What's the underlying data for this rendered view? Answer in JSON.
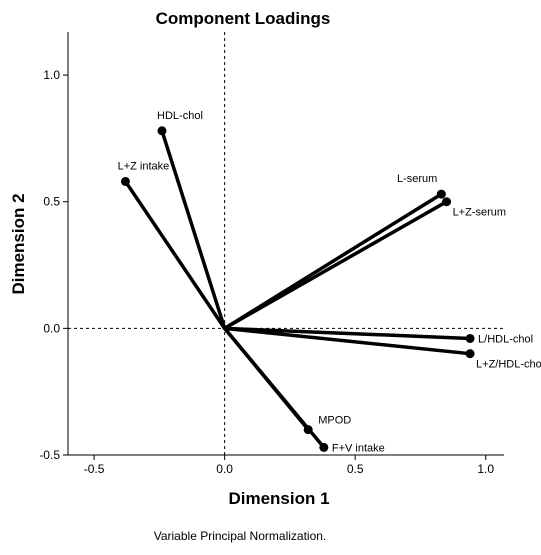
{
  "chart_data": {
    "type": "scatter",
    "title": "Component Loadings",
    "xlabel": "Dimension 1",
    "ylabel": "Dimension 2",
    "footnote": "Variable Principal Normalization.",
    "xlim": [
      -0.6,
      1.07
    ],
    "ylim": [
      -0.5,
      1.17
    ],
    "xticks": [
      -0.5,
      0.0,
      0.5,
      1.0
    ],
    "yticks": [
      -0.5,
      0.0,
      0.5,
      1.0
    ],
    "xtick_labels": [
      "-0.5",
      "0.0",
      "0.5",
      "1.0"
    ],
    "ytick_labels": [
      "-0.5",
      "0.0",
      "0.5",
      "1.0"
    ],
    "reference_lines": {
      "x": 0.0,
      "y": 0.0,
      "style": "dashed"
    },
    "vectors_from_origin": true,
    "points": [
      {
        "label": "HDL-chol",
        "x": -0.24,
        "y": 0.78,
        "label_pos": "above"
      },
      {
        "label": "L+Z intake",
        "x": -0.38,
        "y": 0.58,
        "label_pos": "above"
      },
      {
        "label": "L-serum",
        "x": 0.83,
        "y": 0.53,
        "label_pos": "above-left"
      },
      {
        "label": "L+Z-serum",
        "x": 0.85,
        "y": 0.5,
        "label_pos": "right-below"
      },
      {
        "label": "L/HDL-chol",
        "x": 0.94,
        "y": -0.04,
        "label_pos": "right"
      },
      {
        "label": "L+Z/HDL-chol",
        "x": 0.94,
        "y": -0.1,
        "label_pos": "right-below"
      },
      {
        "label": "MPOD",
        "x": 0.32,
        "y": -0.4,
        "label_pos": "above-right"
      },
      {
        "label": "F+V intake",
        "x": 0.38,
        "y": -0.47,
        "label_pos": "right"
      }
    ]
  }
}
